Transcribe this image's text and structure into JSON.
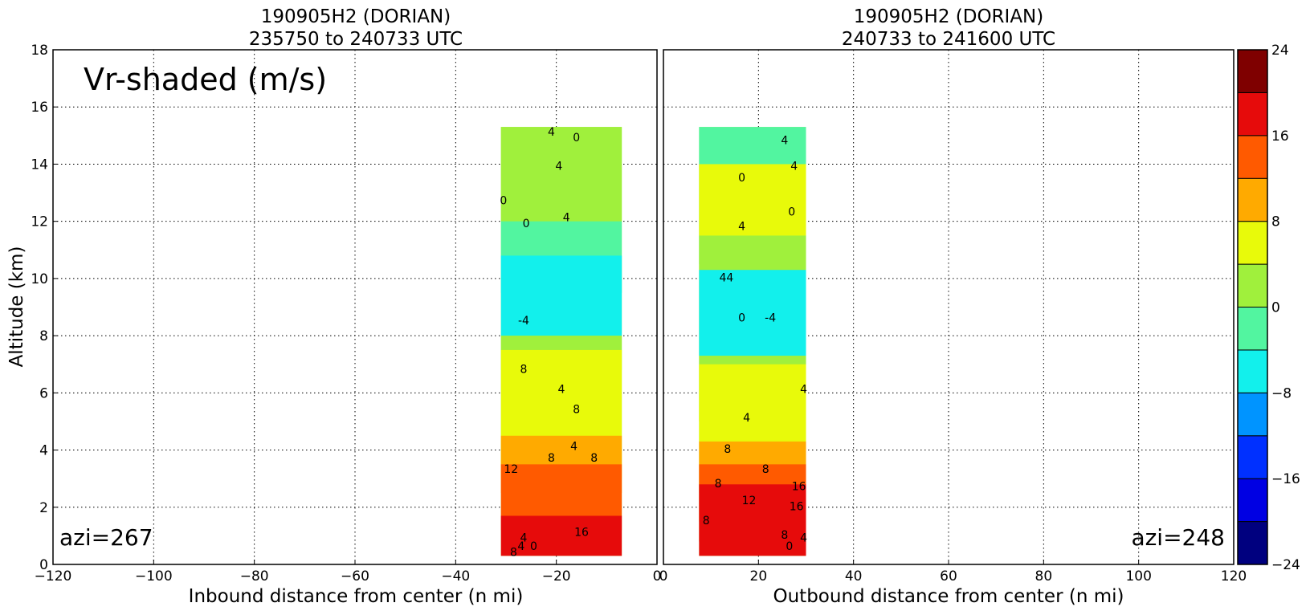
{
  "chart_data": [
    {
      "type": "heatmap",
      "title": [
        "190905H2 (DORIAN)",
        "235750 to 240733 UTC"
      ],
      "xlabel": "Inbound distance from center (n mi)",
      "ylabel": "Altitude (km)",
      "xlim": [
        -120,
        0
      ],
      "ylim": [
        0,
        18
      ],
      "xticks": [
        "−120",
        "−100",
        "−80",
        "−60",
        "−40",
        "−20",
        "0"
      ],
      "yticks": [
        "0",
        "2",
        "4",
        "6",
        "8",
        "10",
        "12",
        "14",
        "16",
        "18"
      ],
      "grid": true,
      "annotation": "Vr-shaded (m/s)",
      "azimuth_label": "azi=267",
      "data_extent": {
        "x": [
          -31,
          -7
        ],
        "y": [
          0.3,
          15.3
        ]
      },
      "bands": [
        {
          "y": [
            12.0,
            15.3
          ],
          "value_class": "0 to 4",
          "color": "#a0f03c"
        },
        {
          "y": [
            9.5,
            12.0
          ],
          "value_class": "-4 to 0",
          "color": "#52f5a0"
        },
        {
          "y": [
            8.0,
            10.8
          ],
          "value_class": "-8 to -4",
          "color": "#12f0ec"
        },
        {
          "y": [
            6.8,
            8.0
          ],
          "value_class": "0 to 4",
          "color": "#a0f03c"
        },
        {
          "y": [
            3.0,
            7.5
          ],
          "value_class": "4 to 8",
          "color": "#e8fa0a"
        },
        {
          "y": [
            2.5,
            4.5
          ],
          "value_class": "8 to 12",
          "color": "#ffaa00"
        },
        {
          "y": [
            1.2,
            3.5
          ],
          "value_class": "12 to 16",
          "color": "#ff5a00"
        },
        {
          "y": [
            0.3,
            1.7
          ],
          "value_class": "16 to 20",
          "color": "#e60b0b"
        }
      ],
      "contour_labels": [
        {
          "text": "4",
          "x": -21,
          "y": 15.0
        },
        {
          "text": "0",
          "x": -16,
          "y": 14.8
        },
        {
          "text": "4",
          "x": -19.5,
          "y": 13.8
        },
        {
          "text": "0",
          "x": -30.5,
          "y": 12.6
        },
        {
          "text": "4",
          "x": -18,
          "y": 12.0
        },
        {
          "text": "0",
          "x": -26,
          "y": 11.8
        },
        {
          "text": "-4",
          "x": -26.5,
          "y": 8.4
        },
        {
          "text": "8",
          "x": -26.5,
          "y": 6.7
        },
        {
          "text": "4",
          "x": -19,
          "y": 6.0
        },
        {
          "text": "8",
          "x": -16,
          "y": 5.3
        },
        {
          "text": "4",
          "x": -16.5,
          "y": 4.0
        },
        {
          "text": "8",
          "x": -21,
          "y": 3.6
        },
        {
          "text": "8",
          "x": -12.5,
          "y": 3.6
        },
        {
          "text": "12",
          "x": -29,
          "y": 3.2
        },
        {
          "text": "16",
          "x": -15,
          "y": 1.0
        },
        {
          "text": "4",
          "x": -26.5,
          "y": 0.8
        },
        {
          "text": "4",
          "x": -27,
          "y": 0.5
        },
        {
          "text": "0",
          "x": -24.5,
          "y": 0.5
        },
        {
          "text": "8",
          "x": -28.5,
          "y": 0.3
        }
      ]
    },
    {
      "type": "heatmap",
      "title": [
        "190905H2 (DORIAN)",
        "240733 to 241600 UTC"
      ],
      "xlabel": "Outbound distance from center (n mi)",
      "ylabel": "",
      "xlim": [
        0,
        120
      ],
      "ylim": [
        0,
        18
      ],
      "xticks": [
        "0",
        "20",
        "40",
        "60",
        "80",
        "100",
        "120"
      ],
      "yticks": [],
      "grid": true,
      "azimuth_label": "azi=248",
      "data_extent": {
        "x": [
          7.5,
          30
        ],
        "y": [
          0.3,
          15.3
        ]
      },
      "bands": [
        {
          "y": [
            10.5,
            15.3
          ],
          "value_class": "-4 to 0",
          "color": "#52f5a0"
        },
        {
          "y": [
            11.5,
            14.0
          ],
          "value_class": "4 to 8",
          "color": "#e8fa0a"
        },
        {
          "y": [
            5.0,
            11.5
          ],
          "value_class": "0 to 4",
          "color": "#a0f03c"
        },
        {
          "y": [
            7.3,
            10.3
          ],
          "value_class": "-8 to -4",
          "color": "#12f0ec"
        },
        {
          "y": [
            2.5,
            7.0
          ],
          "value_class": "4 to 8",
          "color": "#e8fa0a"
        },
        {
          "y": [
            1.5,
            4.3
          ],
          "value_class": "8 to 12",
          "color": "#ffaa00"
        },
        {
          "y": [
            0.8,
            3.5
          ],
          "value_class": "12 to 16",
          "color": "#ff5a00"
        },
        {
          "y": [
            0.3,
            2.8
          ],
          "value_class": "16 to 20",
          "color": "#e60b0b"
        }
      ],
      "contour_labels": [
        {
          "text": "4",
          "x": 25.5,
          "y": 14.7
        },
        {
          "text": "4",
          "x": 27.5,
          "y": 13.8
        },
        {
          "text": "0",
          "x": 16.5,
          "y": 13.4
        },
        {
          "text": "0",
          "x": 27,
          "y": 12.2
        },
        {
          "text": "4",
          "x": 16.5,
          "y": 11.7
        },
        {
          "text": "4",
          "x": 12.5,
          "y": 9.9
        },
        {
          "text": "4",
          "x": 14,
          "y": 9.9
        },
        {
          "text": "0",
          "x": 16.5,
          "y": 8.5
        },
        {
          "text": "-4",
          "x": 22.5,
          "y": 8.5
        },
        {
          "text": "4",
          "x": 29.5,
          "y": 6.0
        },
        {
          "text": "4",
          "x": 17.5,
          "y": 5.0
        },
        {
          "text": "8",
          "x": 13.5,
          "y": 3.9
        },
        {
          "text": "8",
          "x": 21.5,
          "y": 3.2
        },
        {
          "text": "8",
          "x": 11.5,
          "y": 2.7
        },
        {
          "text": "16",
          "x": 28.5,
          "y": 2.6
        },
        {
          "text": "12",
          "x": 18,
          "y": 2.1
        },
        {
          "text": "16",
          "x": 28,
          "y": 1.9
        },
        {
          "text": "8",
          "x": 9,
          "y": 1.4
        },
        {
          "text": "8",
          "x": 25.5,
          "y": 0.9
        },
        {
          "text": "4",
          "x": 29.5,
          "y": 0.8
        },
        {
          "text": "0",
          "x": 26.5,
          "y": 0.5
        }
      ]
    }
  ],
  "colorbar": {
    "ticks": [
      "24",
      "16",
      "8",
      "0",
      "−8",
      "−16",
      "−24"
    ],
    "range": [
      -24,
      24
    ],
    "bounds": [
      -24,
      -20,
      -16,
      -12,
      -8,
      -4,
      0,
      4,
      8,
      12,
      16,
      20,
      24
    ],
    "colors": [
      "#00007f",
      "#0000e3",
      "#0030ff",
      "#0094ff",
      "#12f0ec",
      "#52f5a0",
      "#a0f03c",
      "#e8fa0a",
      "#ffaa00",
      "#ff5a00",
      "#e60b0b",
      "#7f0000"
    ]
  }
}
